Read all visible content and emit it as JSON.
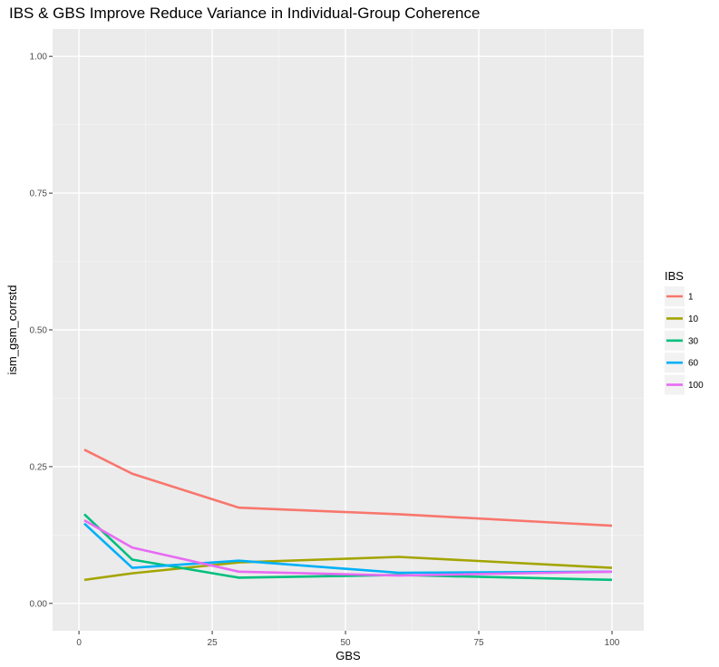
{
  "chart_data": {
    "type": "line",
    "title": "IBS & GBS Improve Reduce Variance in Individual-Group Coherence",
    "xlabel": "GBS",
    "ylabel": "ism_gsm_corrstd",
    "x": [
      1,
      10,
      30,
      60,
      100
    ],
    "xlim": [
      -4.95,
      105.95
    ],
    "ylim": [
      -0.05,
      1.05
    ],
    "x_ticks": [
      0,
      25,
      50,
      75,
      100
    ],
    "x_tick_labels": [
      "0",
      "25",
      "50",
      "75",
      "100"
    ],
    "y_ticks": [
      0,
      0.25,
      0.5,
      0.75,
      1.0
    ],
    "y_tick_labels": [
      "0.00",
      "0.25",
      "0.50",
      "0.75",
      "1.00"
    ],
    "grid": true,
    "legend": {
      "title": "IBS",
      "position": "right"
    },
    "series": [
      {
        "name": "1",
        "color": "#F8766D",
        "values": [
          0.281,
          0.237,
          0.175,
          0.163,
          0.142
        ]
      },
      {
        "name": "10",
        "color": "#A3A500",
        "values": [
          0.043,
          0.055,
          0.075,
          0.085,
          0.065
        ]
      },
      {
        "name": "30",
        "color": "#00BF7D",
        "values": [
          0.163,
          0.08,
          0.047,
          0.052,
          0.043
        ]
      },
      {
        "name": "60",
        "color": "#00B0F6",
        "values": [
          0.146,
          0.065,
          0.078,
          0.056,
          0.058
        ]
      },
      {
        "name": "100",
        "color": "#E76BF3",
        "values": [
          0.152,
          0.102,
          0.058,
          0.051,
          0.058
        ]
      }
    ]
  }
}
